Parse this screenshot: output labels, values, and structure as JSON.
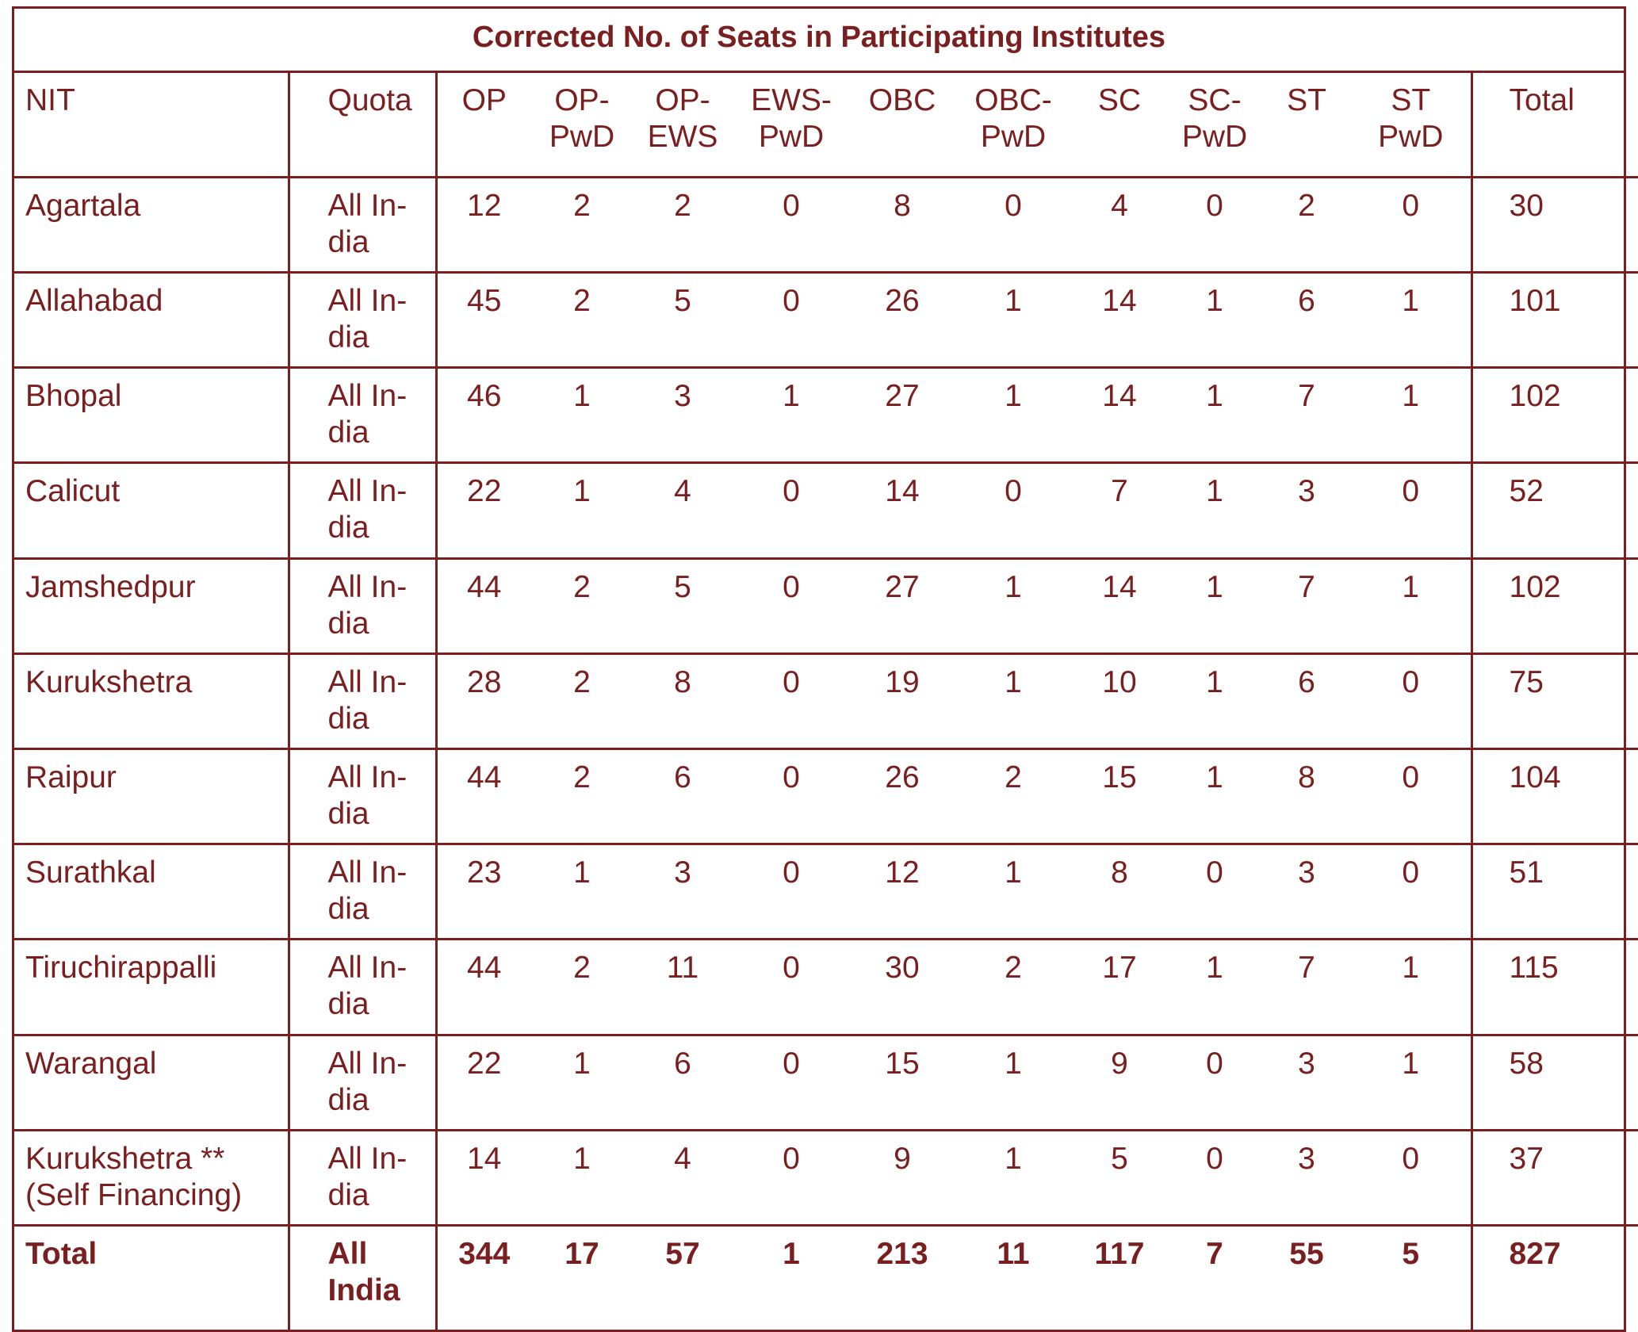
{
  "title": "Corrected No. of Seats in Participating Institutes",
  "headers": {
    "nit": "NIT",
    "quota": "Quota",
    "op": "OP",
    "op_pwd": "OP-\nPwD",
    "op_ews": "OP-\nEWS",
    "ews_pwd": "EWS-\nPwD",
    "obc": "OBC",
    "obc_pwd": "OBC-\nPwD",
    "sc": "SC",
    "sc_pwd": "SC-\nPwD",
    "st": "ST",
    "st_pwd": "ST\nPwD",
    "total": "Total"
  },
  "rows": [
    {
      "nit": "Agartala",
      "quota": "All In-\ndia",
      "values": [
        "12",
        "2",
        "2",
        "0",
        "8",
        "0",
        "4",
        "0",
        "2",
        "0"
      ],
      "total": "30"
    },
    {
      "nit": "Allahabad",
      "quota": "All In-\ndia",
      "values": [
        "45",
        "2",
        "5",
        "0",
        "26",
        "1",
        "14",
        "1",
        "6",
        "1"
      ],
      "total": "101"
    },
    {
      "nit": "Bhopal",
      "quota": "All In-\ndia",
      "values": [
        "46",
        "1",
        "3",
        "1",
        "27",
        "1",
        "14",
        "1",
        "7",
        "1"
      ],
      "total": "102"
    },
    {
      "nit": "Calicut",
      "quota": "All In-\ndia",
      "values": [
        "22",
        "1",
        "4",
        "0",
        "14",
        "0",
        "7",
        "1",
        "3",
        "0"
      ],
      "total": "52"
    },
    {
      "nit": "Jamshedpur",
      "quota": "All In-\ndia",
      "values": [
        "44",
        "2",
        "5",
        "0",
        "27",
        "1",
        "14",
        "1",
        "7",
        "1"
      ],
      "total": "102"
    },
    {
      "nit": "Kurukshetra",
      "quota": "All In-\ndia",
      "values": [
        "28",
        "2",
        "8",
        "0",
        "19",
        "1",
        "10",
        "1",
        "6",
        "0"
      ],
      "total": "75"
    },
    {
      "nit": "Raipur",
      "quota": "All In-\ndia",
      "values": [
        "44",
        "2",
        "6",
        "0",
        "26",
        "2",
        "15",
        "1",
        "8",
        "0"
      ],
      "total": "104"
    },
    {
      "nit": "Surathkal",
      "quota": "All In-\ndia",
      "values": [
        "23",
        "1",
        "3",
        "0",
        "12",
        "1",
        "8",
        "0",
        "3",
        "0"
      ],
      "total": "51"
    },
    {
      "nit": "Tiruchirappalli",
      "quota": "All In-\ndia",
      "values": [
        "44",
        "2",
        "11",
        "0",
        "30",
        "2",
        "17",
        "1",
        "7",
        "1"
      ],
      "total": "115"
    },
    {
      "nit": "Warangal",
      "quota": "All In-\ndia",
      "values": [
        "22",
        "1",
        "6",
        "0",
        "15",
        "1",
        "9",
        "0",
        "3",
        "1"
      ],
      "total": "58"
    },
    {
      "nit": "Kurukshetra **\n(Self Financing)",
      "quota": "All In-\ndia",
      "values": [
        "14",
        "1",
        "4",
        "0",
        "9",
        "1",
        "5",
        "0",
        "3",
        "0"
      ],
      "total": "37"
    }
  ],
  "total_row": {
    "nit": "Total",
    "quota": "All\nIndia",
    "values": [
      "344",
      "17",
      "57",
      "1",
      "213",
      "11",
      "117",
      "7",
      "55",
      "5"
    ],
    "total": "827"
  }
}
